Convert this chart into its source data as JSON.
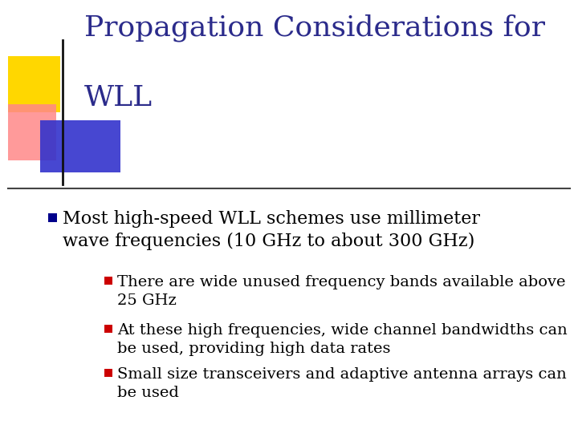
{
  "title_line1": "Propagation Considerations for",
  "title_line2": "WLL",
  "title_color": "#2B2B8B",
  "background_color": "#FFFFFF",
  "bullet1_text": "Most high-speed WLL schemes use millimeter\nwave frequencies (10 GHz to about 300 GHz)",
  "bullet1_color": "#000000",
  "bullet1_marker_color": "#00008B",
  "sub_bullets": [
    "There are wide unused frequency bands available above\n25 GHz",
    "At these high frequencies, wide channel bandwidths can\nbe used, providing high data rates",
    "Small size transceivers and adaptive antenna arrays can\nbe used"
  ],
  "sub_bullet_color": "#000000",
  "sub_bullet_marker_color": "#CC0000",
  "title_fontsize": 26,
  "bullet_fontsize": 16,
  "sub_bullet_fontsize": 14,
  "divider_color": "#444444",
  "logo_yellow": "#FFD700",
  "logo_blue": "#3333CC",
  "logo_red": "#FF8888",
  "logo_line_color": "#111111"
}
